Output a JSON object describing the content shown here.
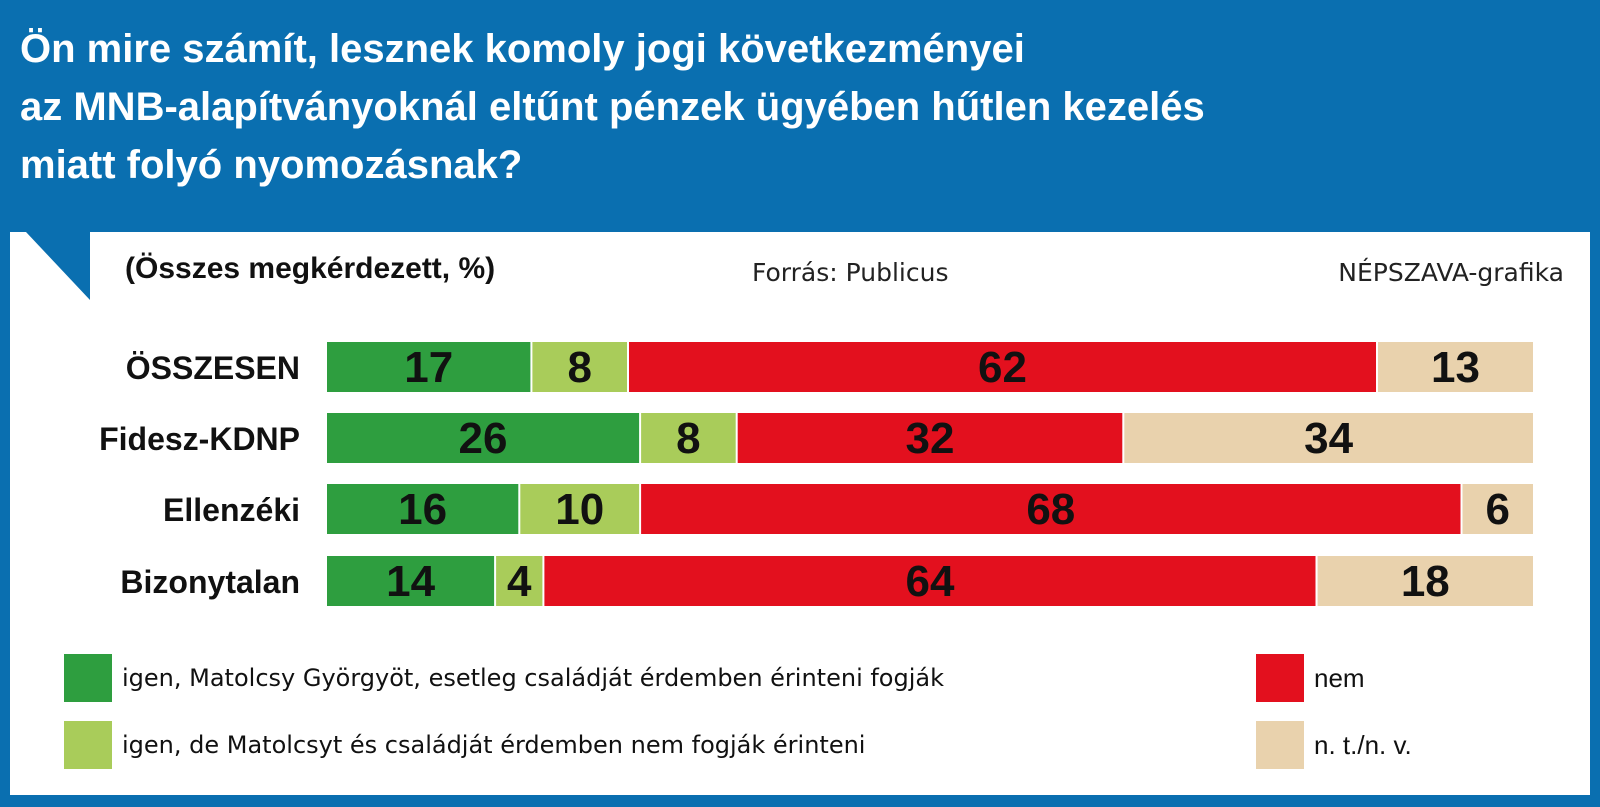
{
  "header": {
    "title_lines": [
      "Ön mire számít, lesznek komoly jogi következményei",
      "az MNB-alapítványoknál eltűnt pénzek ügyében hűtlen kezelés",
      "miatt folyó nyomozásnak?"
    ],
    "subtitle": "(Összes megkérdezett, %)",
    "source": "Forrás: Publicus",
    "credit": "NÉPSZAVA-grafika"
  },
  "colors": {
    "frame": "#0a6fb0",
    "yes_affected": "#2e9e3f",
    "yes_not_affected": "#a9cc5a",
    "no": "#e3101e",
    "dont_know": "#e9d2ad"
  },
  "chart_data": {
    "type": "bar",
    "orientation": "horizontal",
    "stacked": true,
    "unit": "%",
    "title": "Ön mire számít, lesznek komoly jogi következményei az MNB-alapítványoknál eltűnt pénzek ügyében hűtlen kezelés miatt folyó nyomozásnak?",
    "subtitle": "(Összes megkérdezett, %)",
    "categories": [
      "ÖSSZESEN",
      "Fidesz-KDNP",
      "Ellenzéki",
      "Bizonytalan"
    ],
    "series": [
      {
        "name": "igen, Matolcsy Györgyöt, esetleg családját érdemben érinteni fogják",
        "color": "#2e9e3f",
        "values": [
          17,
          26,
          16,
          14
        ]
      },
      {
        "name": "igen, de Matolcsyt és családját érdemben nem fogják érinteni",
        "color": "#a9cc5a",
        "values": [
          8,
          8,
          10,
          4
        ]
      },
      {
        "name": "nem",
        "color": "#e3101e",
        "values": [
          62,
          32,
          68,
          64
        ]
      },
      {
        "name": "n. t./n. v.",
        "color": "#e9d2ad",
        "values": [
          13,
          34,
          6,
          18
        ]
      }
    ],
    "legend_position": "bottom",
    "grid": false
  }
}
